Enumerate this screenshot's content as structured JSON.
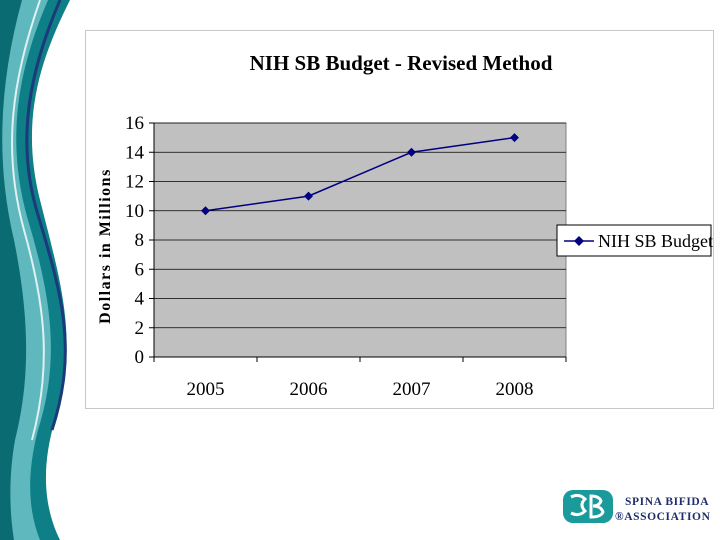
{
  "chart_data": {
    "type": "line",
    "title": "NIH SB Budget - Revised Method",
    "xlabel": "",
    "ylabel": "Dollars in Millions",
    "categories": [
      "2005",
      "2006",
      "2007",
      "2008"
    ],
    "series": [
      {
        "name": "NIH SB Budget",
        "values": [
          10,
          11,
          14,
          15
        ]
      }
    ],
    "ylim": [
      0,
      16
    ],
    "yticks": [
      0,
      2,
      4,
      6,
      8,
      10,
      12,
      14,
      16
    ],
    "grid": true,
    "legend": "right",
    "colors": {
      "line": "#000080",
      "plot_bg": "#c0c0c0",
      "grid": "#000000"
    }
  },
  "logo": {
    "line1": "SPINA BIFIDA",
    "line2": "ASSOCIATION",
    "registered": "®",
    "color": "#1f2f6b",
    "accent": "#1a9a9a"
  },
  "theme": {
    "teal_dark": "#0e7f86",
    "teal_light": "#5fb8bd",
    "navy": "#1a3a7a"
  }
}
